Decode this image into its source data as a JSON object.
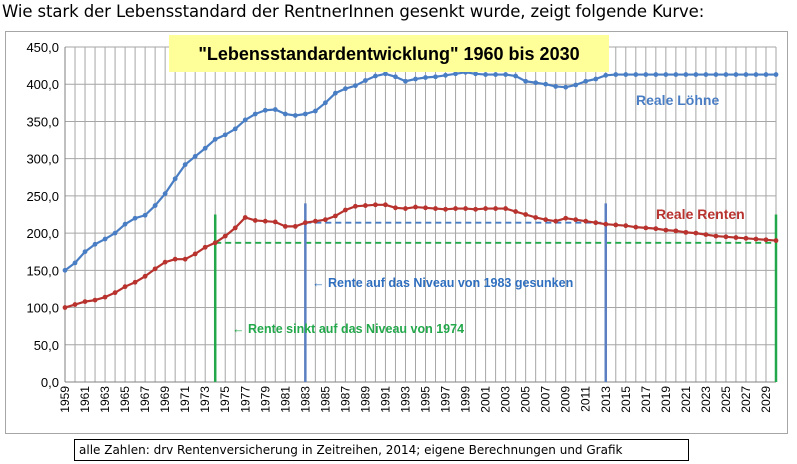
{
  "heading": "Wie stark der Lebensstandard der RentnerInnen gesenkt wurde, zeigt folgende Kurve:",
  "source": "alle Zahlen: drv Rentenversicherung in Zeitreihen, 2014; eigene Berechnungen und Grafik",
  "colors": {
    "wages": "#4a7ec4",
    "pensions": "#b8322e",
    "green_marker": "#22a84a",
    "blue_marker": "#5b7fc0",
    "title_box": "#ffff99",
    "grid": "#a6a6a6"
  },
  "chart_data": {
    "type": "line",
    "title": "\"Lebensstandardentwicklung\" 1960 bis 2030",
    "xlabel": "",
    "ylabel": "",
    "ylim": [
      0,
      450
    ],
    "y_ticks": [
      "0,0",
      "50,0",
      "100,0",
      "150,0",
      "200,0",
      "250,0",
      "300,0",
      "350,0",
      "400,0",
      "450,0"
    ],
    "x_ticks": [
      "1959",
      "1961",
      "1963",
      "1965",
      "1967",
      "1969",
      "1971",
      "1973",
      "1975",
      "1977",
      "1979",
      "1981",
      "1983",
      "1985",
      "1987",
      "1989",
      "1991",
      "1993",
      "1995",
      "1997",
      "1999",
      "2001",
      "2003",
      "2005",
      "2007",
      "2009",
      "2011",
      "2013",
      "2015",
      "2017",
      "2019",
      "2021",
      "2023",
      "2025",
      "2027",
      "2029"
    ],
    "grid": true,
    "x": [
      1959,
      1960,
      1961,
      1962,
      1963,
      1964,
      1965,
      1966,
      1967,
      1968,
      1969,
      1970,
      1971,
      1972,
      1973,
      1974,
      1975,
      1976,
      1977,
      1978,
      1979,
      1980,
      1981,
      1982,
      1983,
      1984,
      1985,
      1986,
      1987,
      1988,
      1989,
      1990,
      1991,
      1992,
      1993,
      1994,
      1995,
      1996,
      1997,
      1998,
      1999,
      2000,
      2001,
      2002,
      2003,
      2004,
      2005,
      2006,
      2007,
      2008,
      2009,
      2010,
      2011,
      2012,
      2013,
      2014,
      2015,
      2016,
      2017,
      2018,
      2019,
      2020,
      2021,
      2022,
      2023,
      2024,
      2025,
      2026,
      2027,
      2028,
      2029,
      2030
    ],
    "series": [
      {
        "name": "Reale Löhne",
        "values": [
          150,
          160,
          175,
          185,
          192,
          200,
          212,
          220,
          224,
          237,
          253,
          273,
          292,
          303,
          314,
          326,
          332,
          340,
          352,
          360,
          365,
          366,
          360,
          358,
          360,
          364,
          375,
          388,
          394,
          398,
          405,
          411,
          414,
          410,
          404,
          407,
          409,
          410,
          412,
          414,
          416,
          414,
          413,
          413,
          413,
          411,
          404,
          402,
          400,
          397,
          396,
          399,
          404,
          407,
          412,
          413,
          413,
          413,
          413,
          413,
          413,
          413,
          413,
          413,
          413,
          413,
          413,
          413,
          413,
          413,
          413,
          413
        ]
      },
      {
        "name": "Reale Renten",
        "values": [
          100,
          104,
          108,
          110,
          114,
          120,
          128,
          134,
          142,
          152,
          161,
          165,
          165,
          172,
          181,
          187,
          196,
          207,
          221,
          217,
          216,
          215,
          209,
          209,
          214,
          216,
          218,
          223,
          231,
          236,
          237,
          238,
          238,
          234,
          233,
          235,
          234,
          233,
          232,
          233,
          233,
          232,
          233,
          233,
          233,
          229,
          225,
          221,
          218,
          216,
          220,
          218,
          216,
          214,
          212,
          211,
          210,
          208,
          207,
          206,
          204,
          203,
          201,
          200,
          198,
          196,
          195,
          194,
          193,
          192,
          191,
          190
        ]
      }
    ],
    "annotations": {
      "series_label_wages": "Reale Löhne",
      "series_label_pensions": "Reale Renten",
      "note_1983": "← Rente auf das Niveau von 1983 gesunken",
      "note_1974": "← Rente sinkt auf das Niveau von 1974"
    },
    "reference_levels": {
      "level_1974": 187,
      "level_1983": 214
    },
    "marker_years": {
      "green": [
        1974,
        2030
      ],
      "blue": [
        1983,
        2013
      ]
    }
  }
}
